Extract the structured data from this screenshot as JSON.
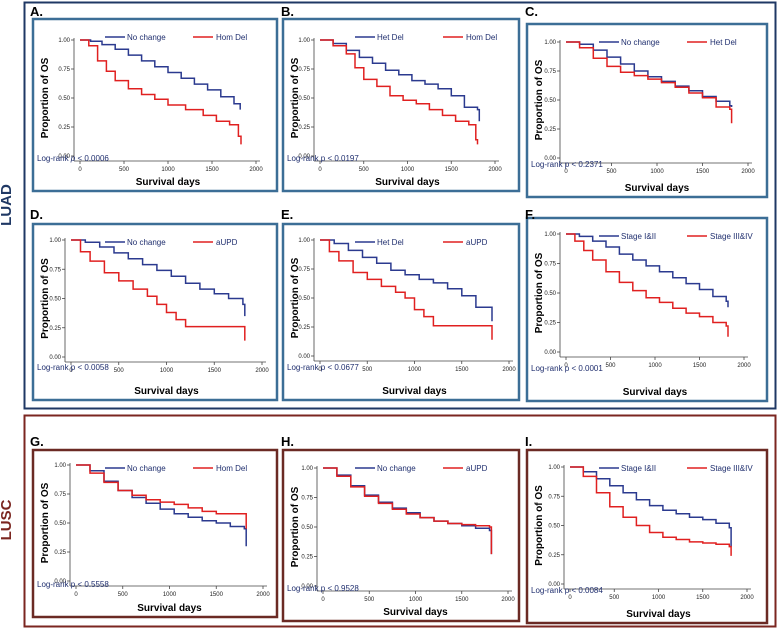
{
  "groups": [
    {
      "id": "luad",
      "label": "LUAD",
      "color": "#1F3864"
    },
    {
      "id": "lusc",
      "label": "LUSC",
      "color": "#7B2620"
    }
  ],
  "axes": {
    "x_label": "Survival days",
    "y_label": "Proportion of OS",
    "x_ticks": [
      "0",
      "500",
      "1000",
      "1500",
      "2000"
    ],
    "y_ticks": [
      "0.00",
      "0.25",
      "0.50",
      "0.75",
      "1.00"
    ],
    "xlim": [
      0,
      2000
    ],
    "ylim": [
      0,
      1
    ]
  },
  "colors": {
    "blue": "#2B3A8F",
    "red": "#E02020",
    "luad_border": "#3C6E96",
    "lusc_border": "#6B2A24"
  },
  "chart_data": [
    {
      "panel": "A.",
      "type": "line",
      "group": "LUAD",
      "title": "",
      "xlabel": "Survival days",
      "ylabel": "Proportion of OS",
      "xlim": [
        0,
        2000
      ],
      "ylim": [
        0,
        1
      ],
      "stat": "Log-rank p < 0.0006",
      "stat_text": "Log-rank ",
      "stat_p": "p",
      "stat_value": " < 0.0006",
      "series": [
        {
          "name": "No change",
          "color": "#2B3A8F",
          "x": [
            0,
            120,
            250,
            400,
            550,
            700,
            850,
            1000,
            1150,
            1300,
            1450,
            1600,
            1750,
            1820
          ],
          "y": [
            1.0,
            0.99,
            0.96,
            0.92,
            0.87,
            0.82,
            0.77,
            0.72,
            0.67,
            0.62,
            0.57,
            0.51,
            0.45,
            0.4
          ]
        },
        {
          "name": "Hom Del",
          "color": "#E02020",
          "x": [
            0,
            100,
            200,
            300,
            400,
            550,
            700,
            850,
            1000,
            1200,
            1400,
            1550,
            1700,
            1800,
            1830
          ],
          "y": [
            1.0,
            0.95,
            0.82,
            0.73,
            0.65,
            0.58,
            0.53,
            0.49,
            0.44,
            0.4,
            0.35,
            0.3,
            0.27,
            0.17,
            0.1
          ]
        }
      ]
    },
    {
      "panel": "B.",
      "type": "line",
      "group": "LUAD",
      "title": "",
      "xlabel": "Survival days",
      "ylabel": "Proportion of OS",
      "xlim": [
        0,
        2000
      ],
      "ylim": [
        0,
        1
      ],
      "stat": "Log-rank p < 0.0197",
      "stat_text": "Log-rank p < 0.0197",
      "stat_p": "",
      "stat_value": "",
      "series": [
        {
          "name": "Het Del",
          "color": "#2B3A8F",
          "x": [
            0,
            150,
            300,
            450,
            600,
            750,
            900,
            1050,
            1200,
            1350,
            1500,
            1650,
            1800,
            1820
          ],
          "y": [
            1.0,
            0.97,
            0.91,
            0.85,
            0.8,
            0.74,
            0.7,
            0.65,
            0.62,
            0.58,
            0.52,
            0.42,
            0.4,
            0.3
          ]
        },
        {
          "name": "Hom Del",
          "color": "#E02020",
          "x": [
            0,
            150,
            300,
            400,
            500,
            650,
            800,
            950,
            1100,
            1250,
            1400,
            1550,
            1700,
            1780,
            1800
          ],
          "y": [
            1.0,
            0.95,
            0.88,
            0.76,
            0.66,
            0.6,
            0.52,
            0.48,
            0.45,
            0.4,
            0.35,
            0.3,
            0.27,
            0.14,
            0.1
          ]
        }
      ]
    },
    {
      "panel": "C.",
      "type": "line",
      "group": "LUAD",
      "title": "",
      "xlabel": "Survival days",
      "ylabel": "Proportion of OS",
      "xlim": [
        0,
        2000
      ],
      "ylim": [
        0,
        1
      ],
      "stat": "Log-rank p < 0.2371",
      "stat_text": "Log-rank p < 0.2371",
      "stat_p": "",
      "stat_value": "",
      "series": [
        {
          "name": "No change",
          "color": "#2B3A8F",
          "x": [
            0,
            150,
            300,
            450,
            600,
            750,
            900,
            1050,
            1200,
            1350,
            1500,
            1650,
            1800,
            1820
          ],
          "y": [
            1.0,
            0.98,
            0.93,
            0.87,
            0.81,
            0.75,
            0.7,
            0.66,
            0.62,
            0.58,
            0.53,
            0.49,
            0.45,
            0.44
          ]
        },
        {
          "name": "Het Del",
          "color": "#E02020",
          "x": [
            0,
            150,
            300,
            450,
            600,
            750,
            900,
            1050,
            1200,
            1350,
            1500,
            1650,
            1800,
            1820
          ],
          "y": [
            1.0,
            0.95,
            0.86,
            0.79,
            0.74,
            0.71,
            0.68,
            0.65,
            0.61,
            0.56,
            0.52,
            0.44,
            0.42,
            0.3
          ]
        }
      ]
    },
    {
      "panel": "D.",
      "type": "line",
      "group": "LUAD",
      "title": "",
      "xlabel": "Survival days",
      "ylabel": "Proportion of OS",
      "xlim": [
        0,
        2000
      ],
      "ylim": [
        0,
        1
      ],
      "stat": "Log-rank p < 0.0058",
      "stat_text": "Log-rank p < 0.0058",
      "stat_p": "",
      "stat_value": "",
      "series": [
        {
          "name": "No change",
          "color": "#2B3A8F",
          "x": [
            0,
            150,
            300,
            450,
            600,
            750,
            900,
            1050,
            1200,
            1350,
            1500,
            1650,
            1800,
            1820
          ],
          "y": [
            1.0,
            0.98,
            0.94,
            0.89,
            0.84,
            0.79,
            0.74,
            0.69,
            0.63,
            0.58,
            0.54,
            0.5,
            0.45,
            0.35
          ]
        },
        {
          "name": "aUPD",
          "color": "#E02020",
          "x": [
            0,
            100,
            200,
            350,
            500,
            650,
            800,
            900,
            1000,
            1100,
            1200,
            1800,
            1820
          ],
          "y": [
            1.0,
            0.9,
            0.82,
            0.72,
            0.65,
            0.58,
            0.52,
            0.45,
            0.38,
            0.32,
            0.26,
            0.26,
            0.14
          ]
        }
      ]
    },
    {
      "panel": "E.",
      "type": "line",
      "group": "LUAD",
      "title": "",
      "xlabel": "Survival days",
      "ylabel": "Proportion of OS",
      "xlim": [
        0,
        2000
      ],
      "ylim": [
        0,
        1
      ],
      "stat": "Log-rank p < 0.0677",
      "stat_text": "Log-rank p < 0.0677",
      "stat_p": "",
      "stat_value": "",
      "series": [
        {
          "name": "Het Del",
          "color": "#2B3A8F",
          "x": [
            0,
            150,
            300,
            450,
            600,
            750,
            900,
            1050,
            1200,
            1350,
            1500,
            1650,
            1800,
            1820
          ],
          "y": [
            1.0,
            0.97,
            0.91,
            0.85,
            0.8,
            0.74,
            0.7,
            0.66,
            0.63,
            0.58,
            0.52,
            0.42,
            0.42,
            0.3
          ]
        },
        {
          "name": "aUPD",
          "color": "#E02020",
          "x": [
            0,
            100,
            200,
            350,
            500,
            650,
            800,
            900,
            1000,
            1100,
            1200,
            1800,
            1820
          ],
          "y": [
            1.0,
            0.9,
            0.82,
            0.72,
            0.66,
            0.6,
            0.55,
            0.5,
            0.4,
            0.34,
            0.26,
            0.26,
            0.14
          ]
        }
      ]
    },
    {
      "panel": "F.",
      "type": "line",
      "group": "LUAD",
      "title": "",
      "xlabel": "Survival days",
      "ylabel": "Proportion of OS",
      "xlim": [
        0,
        2000
      ],
      "ylim": [
        0,
        1
      ],
      "stat": "Log-rank p < 0.0001",
      "stat_text": "Log-rank p < 0.0001",
      "stat_p": "",
      "stat_value": "",
      "series": [
        {
          "name": "Stage I&II",
          "color": "#2B3A8F",
          "x": [
            0,
            150,
            300,
            450,
            600,
            750,
            900,
            1050,
            1200,
            1350,
            1500,
            1650,
            1800,
            1820
          ],
          "y": [
            1.0,
            0.98,
            0.94,
            0.89,
            0.83,
            0.78,
            0.73,
            0.68,
            0.63,
            0.58,
            0.53,
            0.47,
            0.43,
            0.38
          ]
        },
        {
          "name": "Stage III&IV",
          "color": "#E02020",
          "x": [
            0,
            100,
            200,
            300,
            450,
            600,
            750,
            900,
            1050,
            1200,
            1350,
            1500,
            1650,
            1800,
            1820
          ],
          "y": [
            1.0,
            0.94,
            0.86,
            0.78,
            0.68,
            0.59,
            0.52,
            0.46,
            0.42,
            0.37,
            0.33,
            0.3,
            0.25,
            0.22,
            0.13
          ]
        }
      ]
    },
    {
      "panel": "G.",
      "type": "line",
      "group": "LUSC",
      "title": "",
      "xlabel": "Survival days",
      "ylabel": "Proportion of OS",
      "xlim": [
        0,
        2000
      ],
      "ylim": [
        0,
        1
      ],
      "stat": "Log-rank p < 0.5558",
      "stat_text": "Log-rank p < 0.5558",
      "stat_p": "",
      "stat_value": "",
      "series": [
        {
          "name": "No change",
          "color": "#2B3A8F",
          "x": [
            0,
            150,
            300,
            450,
            600,
            750,
            900,
            1050,
            1200,
            1350,
            1500,
            1650,
            1800,
            1820
          ],
          "y": [
            1.0,
            0.95,
            0.86,
            0.78,
            0.72,
            0.67,
            0.62,
            0.58,
            0.55,
            0.52,
            0.5,
            0.47,
            0.45,
            0.3
          ]
        },
        {
          "name": "Hom Del",
          "color": "#E02020",
          "x": [
            0,
            150,
            300,
            450,
            600,
            750,
            900,
            1050,
            1200,
            1350,
            1500,
            1650,
            1800,
            1820
          ],
          "y": [
            1.0,
            0.93,
            0.85,
            0.78,
            0.74,
            0.7,
            0.68,
            0.66,
            0.63,
            0.6,
            0.58,
            0.58,
            0.58,
            0.45
          ]
        }
      ]
    },
    {
      "panel": "H.",
      "type": "line",
      "group": "LUSC",
      "title": "",
      "xlabel": "Survival days",
      "ylabel": "Proportion of OS",
      "xlim": [
        0,
        2000
      ],
      "ylim": [
        0,
        1
      ],
      "stat": "Log-rank p < 0.9528",
      "stat_text": "Log-rank p < 0.9528",
      "stat_p": "",
      "stat_value": "",
      "series": [
        {
          "name": "No change",
          "color": "#2B3A8F",
          "x": [
            0,
            150,
            300,
            450,
            600,
            750,
            900,
            1050,
            1200,
            1350,
            1500,
            1650,
            1800,
            1820
          ],
          "y": [
            1.0,
            0.94,
            0.85,
            0.77,
            0.71,
            0.66,
            0.62,
            0.58,
            0.55,
            0.53,
            0.51,
            0.49,
            0.47,
            0.27
          ]
        },
        {
          "name": "aUPD",
          "color": "#E02020",
          "x": [
            0,
            150,
            300,
            450,
            600,
            750,
            900,
            1050,
            1200,
            1350,
            1500,
            1650,
            1800,
            1820
          ],
          "y": [
            1.0,
            0.93,
            0.84,
            0.76,
            0.7,
            0.65,
            0.61,
            0.58,
            0.55,
            0.53,
            0.52,
            0.51,
            0.5,
            0.27
          ]
        }
      ]
    },
    {
      "panel": "I.",
      "type": "line",
      "group": "LUSC",
      "title": "",
      "xlabel": "Survival days",
      "ylabel": "Proportion of OS",
      "xlim": [
        0,
        2000
      ],
      "ylim": [
        0,
        1
      ],
      "stat": "Log-rank p < 0.0084",
      "stat_text": "Log-rank p < 0.0084",
      "stat_p": "",
      "stat_value": "",
      "series": [
        {
          "name": "Stage I&II",
          "color": "#2B3A8F",
          "x": [
            0,
            150,
            300,
            450,
            600,
            750,
            900,
            1050,
            1200,
            1350,
            1500,
            1650,
            1800,
            1820
          ],
          "y": [
            1.0,
            0.96,
            0.9,
            0.84,
            0.78,
            0.72,
            0.67,
            0.63,
            0.6,
            0.57,
            0.55,
            0.52,
            0.48,
            0.32
          ]
        },
        {
          "name": "Stage III&IV",
          "color": "#E02020",
          "x": [
            0,
            150,
            300,
            450,
            600,
            750,
            900,
            1050,
            1200,
            1350,
            1500,
            1650,
            1800,
            1820
          ],
          "y": [
            1.0,
            0.92,
            0.78,
            0.66,
            0.57,
            0.5,
            0.44,
            0.4,
            0.38,
            0.36,
            0.35,
            0.34,
            0.32,
            0.24
          ]
        }
      ]
    }
  ]
}
